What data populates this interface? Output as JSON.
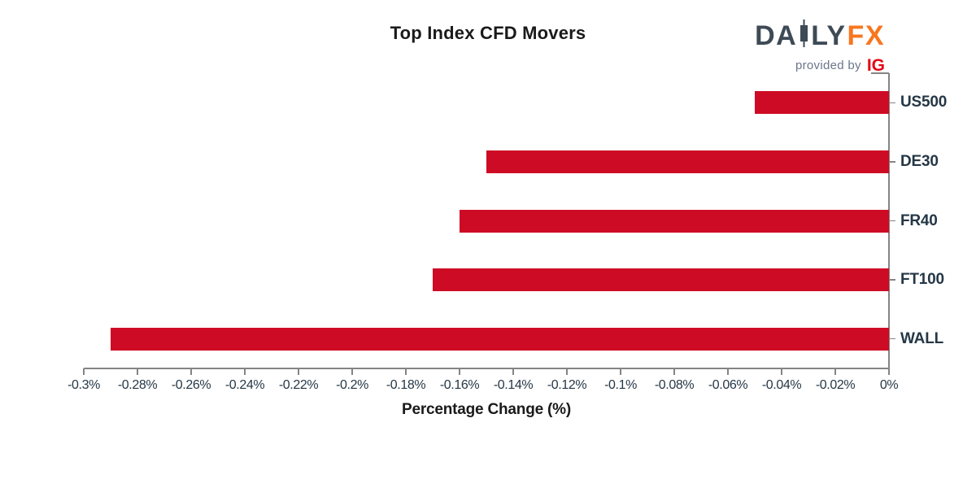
{
  "title": "Top Index CFD Movers",
  "logo": {
    "brand_left": "DA",
    "brand_right": "LY",
    "brand_fx": "FX",
    "provided_by": "provided by",
    "ig": "IG"
  },
  "colors": {
    "bar": "#CE0B24",
    "axis": "#848484",
    "tick_label": "#253746",
    "category_label": "#253746",
    "title": "#1A1A1A",
    "logo_slate": "#3E4A55",
    "logo_orange": "#F8761F",
    "logo_provided_gray": "#6A7689",
    "logo_ig_red": "#E40613"
  },
  "chart_data": {
    "type": "bar",
    "orientation": "horizontal",
    "title": "Top Index CFD Movers",
    "xlabel": "Percentage Change (%)",
    "ylabel": "",
    "categories": [
      "US500",
      "DE30",
      "FR40",
      "FT100",
      "WALL"
    ],
    "values": [
      -0.05,
      -0.15,
      -0.16,
      -0.17,
      -0.29
    ],
    "unit": "%",
    "xlim": [
      -0.3,
      0
    ],
    "grid": false,
    "legend": "none",
    "zero_axis_position": "right",
    "xticks": [
      {
        "value": -0.3,
        "label": "-0.3%"
      },
      {
        "value": -0.28,
        "label": "-0.28%"
      },
      {
        "value": -0.26,
        "label": "-0.26%"
      },
      {
        "value": -0.24,
        "label": "-0.24%"
      },
      {
        "value": -0.22,
        "label": "-0.22%"
      },
      {
        "value": -0.2,
        "label": "-0.2%"
      },
      {
        "value": -0.18,
        "label": "-0.18%"
      },
      {
        "value": -0.16,
        "label": "-0.16%"
      },
      {
        "value": -0.14,
        "label": "-0.14%"
      },
      {
        "value": -0.12,
        "label": "-0.12%"
      },
      {
        "value": -0.1,
        "label": "-0.1%"
      },
      {
        "value": -0.08,
        "label": "-0.08%"
      },
      {
        "value": -0.06,
        "label": "-0.06%"
      },
      {
        "value": -0.04,
        "label": "-0.04%"
      },
      {
        "value": -0.02,
        "label": "-0.02%"
      },
      {
        "value": 0.0,
        "label": "0%"
      }
    ]
  }
}
